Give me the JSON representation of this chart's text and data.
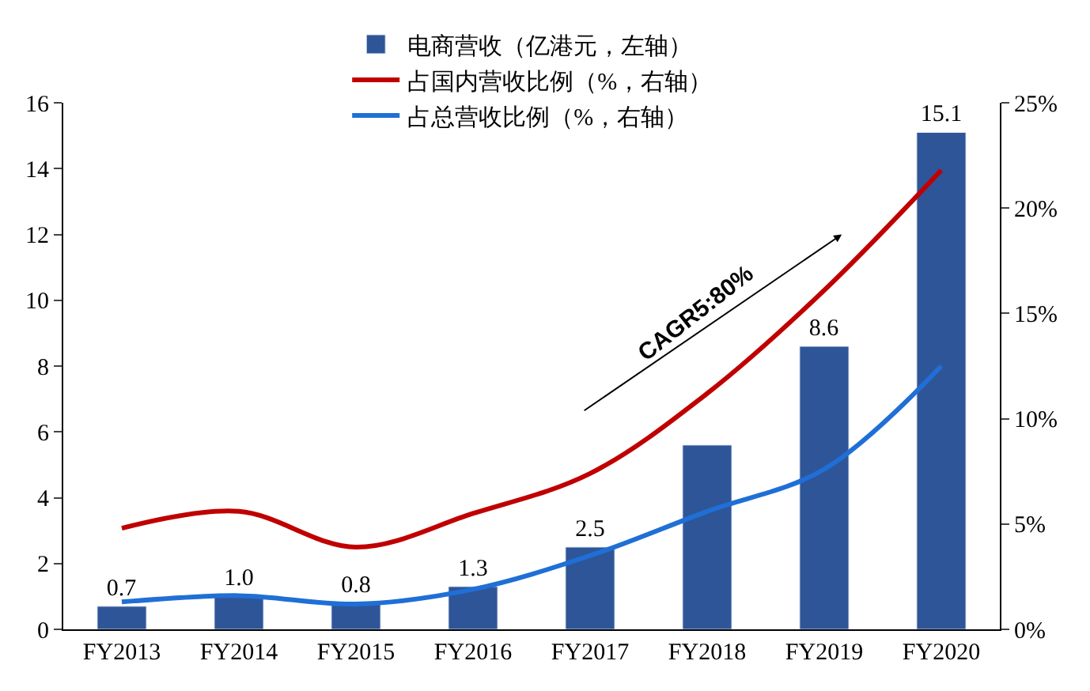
{
  "chart_data": {
    "type": "bar",
    "categories": [
      "FY2013",
      "FY2014",
      "FY2015",
      "FY2016",
      "FY2017",
      "FY2018",
      "FY2019",
      "FY2020"
    ],
    "series": [
      {
        "name": "电商营收（亿港元，左轴）",
        "color": "#2e5597",
        "values": [
          0.7,
          1.0,
          0.8,
          1.3,
          2.5,
          5.6,
          8.6,
          15.1
        ],
        "value_labels": [
          "0.7",
          "1.0",
          "0.8",
          "1.3",
          "2.5",
          null,
          "8.6",
          "15.1"
        ]
      },
      {
        "name": "占国内营收比例（%，右轴）",
        "type": "line",
        "axis": "y2",
        "color": "#c00000",
        "values": [
          4.8,
          5.6,
          3.9,
          5.5,
          7.4,
          11.2,
          16.1,
          21.8
        ]
      },
      {
        "name": "占总营收比例（%，右轴）",
        "type": "line",
        "axis": "y2",
        "color": "#1f6fd6",
        "values": [
          1.3,
          1.6,
          1.2,
          1.9,
          3.5,
          5.6,
          7.6,
          12.5
        ]
      }
    ],
    "ylim": [
      0,
      16
    ],
    "yticks": [
      0,
      2,
      4,
      6,
      8,
      10,
      12,
      14,
      16
    ],
    "y2lim": [
      0,
      25
    ],
    "y2ticks": [
      {
        "value": 0,
        "label": "0%"
      },
      {
        "value": 5,
        "label": "5%"
      },
      {
        "value": 10,
        "label": "10%"
      },
      {
        "value": 15,
        "label": "15%"
      },
      {
        "value": 20,
        "label": "20%"
      },
      {
        "value": 25,
        "label": "25%"
      }
    ],
    "annotations": [
      "CAGR5:80%"
    ],
    "legend": "top"
  }
}
